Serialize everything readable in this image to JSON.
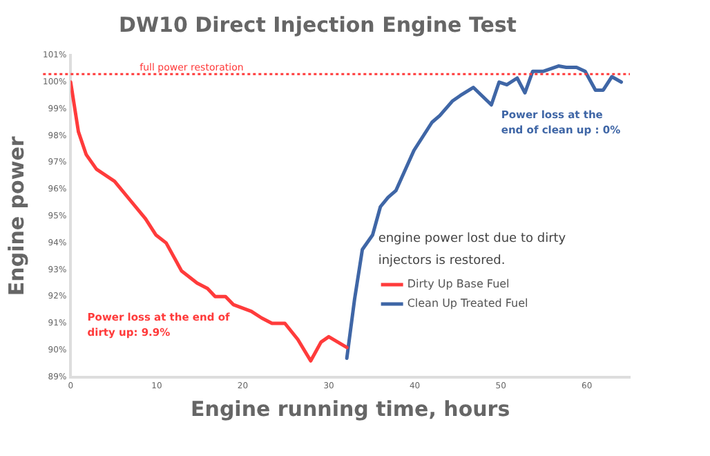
{
  "chart_data": {
    "type": "line",
    "title": "DW10 Direct Injection Engine Test",
    "xlabel": "Engine running time, hours",
    "ylabel": "Engine power",
    "xlim": [
      0,
      65
    ],
    "xticks": [
      0,
      10,
      20,
      30,
      40,
      50,
      60
    ],
    "ylim": [
      89,
      101
    ],
    "yticks": [
      {
        "value": 89,
        "label": "89%"
      },
      {
        "value": 90,
        "label": "90%"
      },
      {
        "value": 91,
        "label": "91%"
      },
      {
        "value": 92,
        "label": "92%"
      },
      {
        "value": 93,
        "label": "93%"
      },
      {
        "value": 94,
        "label": "94%"
      },
      {
        "value": 95,
        "label": "95%"
      },
      {
        "value": 96,
        "label": "96%"
      },
      {
        "value": 97,
        "label": "97%"
      },
      {
        "value": 98,
        "label": "98%"
      },
      {
        "value": 99,
        "label": "99%"
      },
      {
        "value": 100,
        "label": "100%"
      },
      {
        "value": 101,
        "label": "101%"
      }
    ],
    "grid": false,
    "legend": "bottom right",
    "marker": "none",
    "line_style": "solid",
    "series": [
      {
        "name": "Dirty Up Base Fuel",
        "color": "#ff3b3b",
        "x": [
          0,
          0.9,
          1.8,
          3,
          5.1,
          6.9,
          8.7,
          9.9,
          11.1,
          12.9,
          14.7,
          15.9,
          16.8,
          18,
          18.9,
          21,
          22.2,
          23.4,
          24.9,
          26.4,
          27.9,
          29.1,
          30,
          32.1
        ],
        "values": [
          100,
          98.15,
          97.3,
          96.75,
          96.3,
          95.6,
          94.9,
          94.3,
          94,
          92.95,
          92.5,
          92.3,
          92,
          92,
          91.7,
          91.45,
          91.2,
          91,
          91,
          90.4,
          89.6,
          90.3,
          90.5,
          90.1
        ]
      },
      {
        "name": "Clean Up Treated Fuel",
        "color": "#3f66a6",
        "x": [
          32.1,
          33,
          33.9,
          35.1,
          36,
          36.9,
          37.8,
          39.9,
          42,
          42.9,
          44.4,
          45.3,
          46.8,
          48.9,
          49.8,
          50.7,
          51.9,
          52.8,
          53.7,
          54.9,
          56.7,
          57.6,
          58.8,
          59.8,
          61,
          61.9,
          62.9,
          64
        ],
        "values": [
          89.7,
          91.9,
          93.75,
          94.3,
          95.35,
          95.7,
          95.95,
          97.45,
          98.5,
          98.75,
          99.3,
          99.5,
          99.8,
          99.15,
          100,
          99.9,
          100.15,
          99.6,
          100.4,
          100.4,
          100.6,
          100.55,
          100.55,
          100.4,
          99.7,
          99.7,
          100.2,
          100
        ]
      }
    ],
    "ref_lines": [
      {
        "axis": "y",
        "value": 100.3,
        "label": "full power restoration",
        "color": "#ff3b3b",
        "line_style": "dotted"
      }
    ],
    "annotations": [
      "Power loss at the end of dirty up: 9.9%",
      "Power loss at the end of clean up : 0%",
      "engine power lost due to dirty injectors is restored."
    ]
  }
}
